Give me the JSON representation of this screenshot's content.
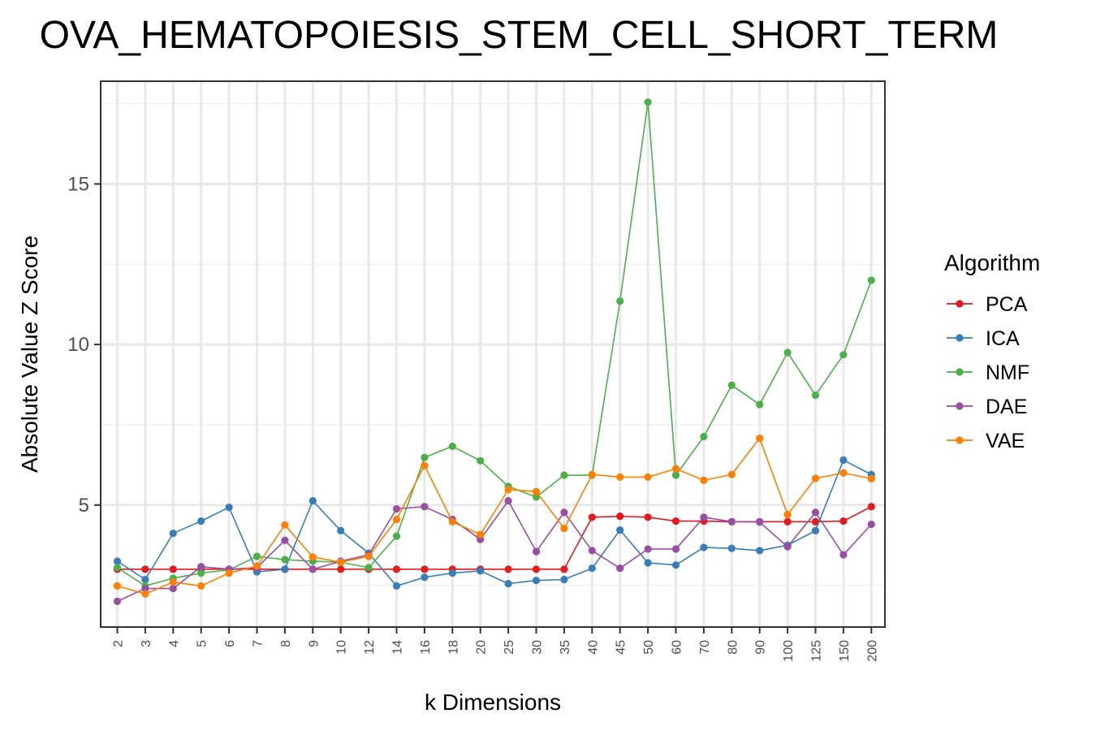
{
  "chart_data": {
    "type": "line",
    "title": "OVA_HEMATOPOIESIS_STEM_CELL_SHORT_TERM",
    "xlabel": "k Dimensions",
    "ylabel": "Absolute Value Z Score",
    "categories": [
      "2",
      "3",
      "4",
      "5",
      "6",
      "7",
      "8",
      "9",
      "10",
      "12",
      "14",
      "16",
      "18",
      "20",
      "25",
      "30",
      "35",
      "40",
      "45",
      "50",
      "60",
      "70",
      "80",
      "90",
      "100",
      "125",
      "150",
      "200"
    ],
    "yticks": [
      5,
      10,
      15
    ],
    "ylim": [
      1.2,
      18.2
    ],
    "grid": true,
    "legend": {
      "title": "Algorithm",
      "position": "right"
    },
    "series": [
      {
        "name": "PCA",
        "color": "#e41a1c",
        "values": [
          3.0,
          3.0,
          3.0,
          3.0,
          3.0,
          3.0,
          3.0,
          3.0,
          3.0,
          3.0,
          3.0,
          3.0,
          3.0,
          3.0,
          3.0,
          3.0,
          3.0,
          4.62,
          4.65,
          4.62,
          4.5,
          4.5,
          4.48,
          4.48,
          4.48,
          4.48,
          4.5,
          4.95
        ]
      },
      {
        "name": "ICA",
        "color": "#377eb8",
        "values": [
          3.25,
          2.68,
          4.12,
          4.5,
          4.93,
          2.92,
          3.0,
          5.13,
          4.2,
          3.5,
          2.48,
          2.75,
          2.88,
          2.95,
          2.55,
          2.65,
          2.68,
          3.03,
          4.22,
          3.2,
          3.13,
          3.68,
          3.65,
          3.58,
          3.75,
          4.2,
          6.4,
          5.95
        ]
      },
      {
        "name": "NMF",
        "color": "#4daf4a",
        "values": [
          3.05,
          2.48,
          2.72,
          2.88,
          2.98,
          3.4,
          3.3,
          3.25,
          3.22,
          3.05,
          4.03,
          6.48,
          6.83,
          6.38,
          5.58,
          5.25,
          5.93,
          5.93,
          11.35,
          17.55,
          5.93,
          7.13,
          8.73,
          8.13,
          9.75,
          8.42,
          9.68,
          12.0
        ]
      },
      {
        "name": "DAE",
        "color": "#984ea3",
        "values": [
          2.0,
          2.4,
          2.4,
          3.08,
          3.0,
          3.05,
          3.9,
          3.0,
          3.25,
          3.45,
          4.88,
          4.95,
          4.55,
          3.93,
          5.13,
          3.55,
          4.77,
          3.58,
          3.03,
          3.63,
          3.63,
          4.62,
          4.48,
          4.47,
          3.7,
          4.77,
          3.45,
          4.4
        ]
      },
      {
        "name": "VAE",
        "color": "#ff7f00",
        "values": [
          2.48,
          2.23,
          2.6,
          2.48,
          2.88,
          3.1,
          4.38,
          3.38,
          3.22,
          3.4,
          4.55,
          6.23,
          4.48,
          4.08,
          5.48,
          5.42,
          4.27,
          5.95,
          5.87,
          5.87,
          6.13,
          5.77,
          5.95,
          7.08,
          4.7,
          5.83,
          6.0,
          5.82
        ]
      }
    ]
  }
}
